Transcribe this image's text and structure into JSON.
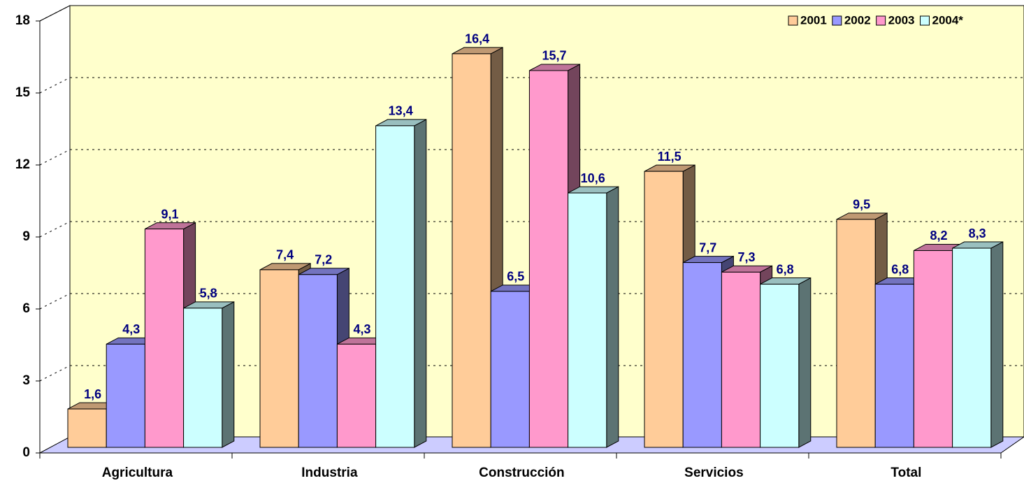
{
  "chart_data": {
    "type": "bar3d",
    "categories": [
      "Agricultura",
      "Industria",
      "Construcción",
      "Servicios",
      "Total"
    ],
    "series": [
      {
        "name": "2001",
        "color": "#ffcc99",
        "values": [
          1.6,
          7.4,
          16.4,
          11.5,
          9.5
        ],
        "value_labels": [
          "1,6",
          "7,4",
          "16,4",
          "11,5",
          "9,5"
        ]
      },
      {
        "name": "2002",
        "color": "#9999ff",
        "values": [
          4.3,
          7.2,
          6.5,
          7.7,
          6.8
        ],
        "value_labels": [
          "4,3",
          "7,2",
          "6,5",
          "7,7",
          "6,8"
        ]
      },
      {
        "name": "2003",
        "color": "#ff99cc",
        "values": [
          9.1,
          4.3,
          15.7,
          7.3,
          8.2
        ],
        "value_labels": [
          "9,1",
          "4,3",
          "15,7",
          "7,3",
          "8,2"
        ]
      },
      {
        "name": "2004*",
        "color": "#ccffff",
        "values": [
          5.8,
          13.4,
          10.6,
          6.8,
          8.3
        ],
        "value_labels": [
          "5,8",
          "13,4",
          "10,6",
          "6,8",
          "8,3"
        ]
      }
    ],
    "ylim": [
      0,
      18
    ],
    "yticks": [
      0,
      3,
      6,
      9,
      12,
      15,
      18
    ],
    "grid": true,
    "legend": "top-right"
  }
}
